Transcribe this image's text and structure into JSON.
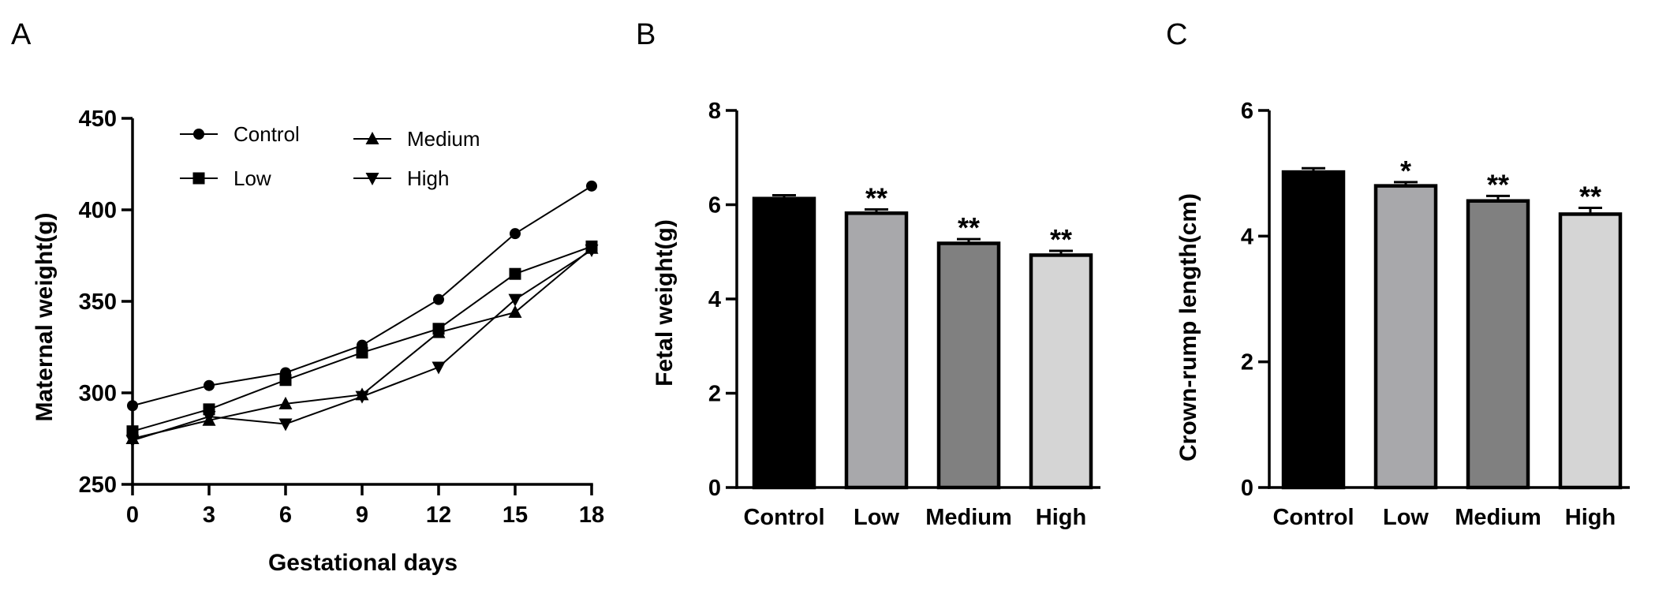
{
  "chart_data": [
    {
      "panel": "A",
      "type": "line",
      "xlabel": "Gestational days",
      "ylabel": "Maternal weight(g)",
      "x": [
        0,
        3,
        6,
        9,
        12,
        15,
        18
      ],
      "xticks": [
        "0",
        "3",
        "6",
        "9",
        "12",
        "15",
        "18"
      ],
      "ylim": [
        250,
        450
      ],
      "yticks": [
        "250",
        "300",
        "350",
        "400",
        "450"
      ],
      "legend": "top-left",
      "series": [
        {
          "name": "Control",
          "marker": "circle",
          "values": [
            293,
            304,
            311,
            326,
            351,
            387,
            413
          ]
        },
        {
          "name": "Low",
          "marker": "square",
          "values": [
            279,
            291,
            307,
            322,
            335,
            365,
            380
          ]
        },
        {
          "name": "Medium",
          "marker": "triangle-up",
          "values": [
            275,
            285,
            294,
            299,
            333,
            344,
            379
          ]
        },
        {
          "name": "High",
          "marker": "triangle-down",
          "values": [
            274,
            287,
            283,
            298,
            314,
            351,
            378
          ]
        }
      ]
    },
    {
      "panel": "B",
      "type": "bar",
      "ylabel": "Fetal weight(g)",
      "categories": [
        "Control",
        "Low",
        "Medium",
        "High"
      ],
      "values": [
        6.13,
        5.82,
        5.18,
        4.93
      ],
      "errors": [
        0.07,
        0.08,
        0.09,
        0.09
      ],
      "colors": [
        "#000000",
        "#a8a8ab",
        "#808080",
        "#d5d5d5"
      ],
      "significance": [
        "",
        "**",
        "**",
        "**"
      ],
      "ylim": [
        0,
        8
      ],
      "yticks": [
        "0",
        "2",
        "4",
        "6",
        "8"
      ]
    },
    {
      "panel": "C",
      "type": "bar",
      "ylabel": "Crown-rump length(cm)",
      "categories": [
        "Control",
        "Low",
        "Medium",
        "High"
      ],
      "values": [
        5.02,
        4.8,
        4.56,
        4.35
      ],
      "errors": [
        0.06,
        0.06,
        0.08,
        0.1
      ],
      "colors": [
        "#000000",
        "#a8a8ab",
        "#808080",
        "#d5d5d5"
      ],
      "significance": [
        "",
        "*",
        "**",
        "**"
      ],
      "ylim": [
        0,
        6
      ],
      "yticks": [
        "0",
        "2",
        "4",
        "6"
      ]
    }
  ]
}
